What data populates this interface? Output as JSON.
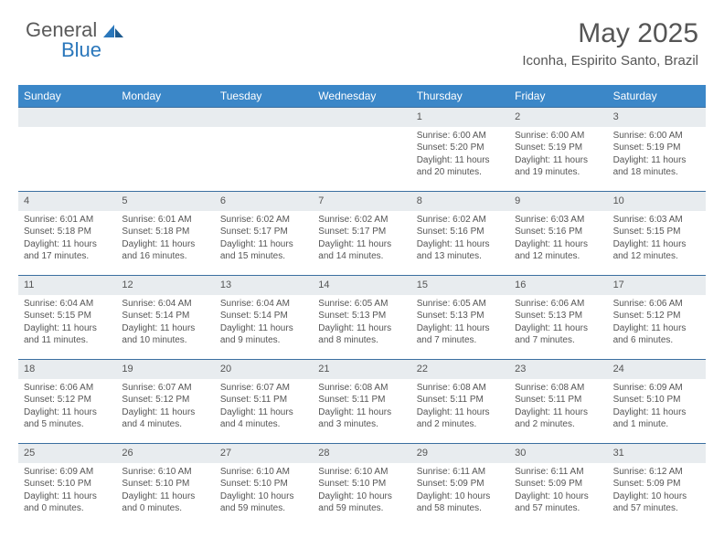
{
  "logo": {
    "text1": "General",
    "text2": "Blue"
  },
  "title": "May 2025",
  "subtitle": "Iconha, Espirito Santo, Brazil",
  "colors": {
    "header_bg": "#3b87c8",
    "header_text": "#ffffff",
    "daybar_bg": "#e8ecef",
    "daybar_border": "#3b6fa0",
    "body_text": "#555555",
    "page_bg": "#ffffff",
    "logo_blue": "#2a77bb",
    "logo_gray": "#5a5a5a"
  },
  "fonts": {
    "title_size": 30,
    "subtitle_size": 15,
    "dow_size": 12,
    "daynum_size": 11,
    "body_size": 10
  },
  "days_of_week": [
    "Sunday",
    "Monday",
    "Tuesday",
    "Wednesday",
    "Thursday",
    "Friday",
    "Saturday"
  ],
  "leading_blanks": 4,
  "days": [
    {
      "n": "1",
      "sunrise": "6:00 AM",
      "sunset": "5:20 PM",
      "daylight": "11 hours and 20 minutes."
    },
    {
      "n": "2",
      "sunrise": "6:00 AM",
      "sunset": "5:19 PM",
      "daylight": "11 hours and 19 minutes."
    },
    {
      "n": "3",
      "sunrise": "6:00 AM",
      "sunset": "5:19 PM",
      "daylight": "11 hours and 18 minutes."
    },
    {
      "n": "4",
      "sunrise": "6:01 AM",
      "sunset": "5:18 PM",
      "daylight": "11 hours and 17 minutes."
    },
    {
      "n": "5",
      "sunrise": "6:01 AM",
      "sunset": "5:18 PM",
      "daylight": "11 hours and 16 minutes."
    },
    {
      "n": "6",
      "sunrise": "6:02 AM",
      "sunset": "5:17 PM",
      "daylight": "11 hours and 15 minutes."
    },
    {
      "n": "7",
      "sunrise": "6:02 AM",
      "sunset": "5:17 PM",
      "daylight": "11 hours and 14 minutes."
    },
    {
      "n": "8",
      "sunrise": "6:02 AM",
      "sunset": "5:16 PM",
      "daylight": "11 hours and 13 minutes."
    },
    {
      "n": "9",
      "sunrise": "6:03 AM",
      "sunset": "5:16 PM",
      "daylight": "11 hours and 12 minutes."
    },
    {
      "n": "10",
      "sunrise": "6:03 AM",
      "sunset": "5:15 PM",
      "daylight": "11 hours and 12 minutes."
    },
    {
      "n": "11",
      "sunrise": "6:04 AM",
      "sunset": "5:15 PM",
      "daylight": "11 hours and 11 minutes."
    },
    {
      "n": "12",
      "sunrise": "6:04 AM",
      "sunset": "5:14 PM",
      "daylight": "11 hours and 10 minutes."
    },
    {
      "n": "13",
      "sunrise": "6:04 AM",
      "sunset": "5:14 PM",
      "daylight": "11 hours and 9 minutes."
    },
    {
      "n": "14",
      "sunrise": "6:05 AM",
      "sunset": "5:13 PM",
      "daylight": "11 hours and 8 minutes."
    },
    {
      "n": "15",
      "sunrise": "6:05 AM",
      "sunset": "5:13 PM",
      "daylight": "11 hours and 7 minutes."
    },
    {
      "n": "16",
      "sunrise": "6:06 AM",
      "sunset": "5:13 PM",
      "daylight": "11 hours and 7 minutes."
    },
    {
      "n": "17",
      "sunrise": "6:06 AM",
      "sunset": "5:12 PM",
      "daylight": "11 hours and 6 minutes."
    },
    {
      "n": "18",
      "sunrise": "6:06 AM",
      "sunset": "5:12 PM",
      "daylight": "11 hours and 5 minutes."
    },
    {
      "n": "19",
      "sunrise": "6:07 AM",
      "sunset": "5:12 PM",
      "daylight": "11 hours and 4 minutes."
    },
    {
      "n": "20",
      "sunrise": "6:07 AM",
      "sunset": "5:11 PM",
      "daylight": "11 hours and 4 minutes."
    },
    {
      "n": "21",
      "sunrise": "6:08 AM",
      "sunset": "5:11 PM",
      "daylight": "11 hours and 3 minutes."
    },
    {
      "n": "22",
      "sunrise": "6:08 AM",
      "sunset": "5:11 PM",
      "daylight": "11 hours and 2 minutes."
    },
    {
      "n": "23",
      "sunrise": "6:08 AM",
      "sunset": "5:11 PM",
      "daylight": "11 hours and 2 minutes."
    },
    {
      "n": "24",
      "sunrise": "6:09 AM",
      "sunset": "5:10 PM",
      "daylight": "11 hours and 1 minute."
    },
    {
      "n": "25",
      "sunrise": "6:09 AM",
      "sunset": "5:10 PM",
      "daylight": "11 hours and 0 minutes."
    },
    {
      "n": "26",
      "sunrise": "6:10 AM",
      "sunset": "5:10 PM",
      "daylight": "11 hours and 0 minutes."
    },
    {
      "n": "27",
      "sunrise": "6:10 AM",
      "sunset": "5:10 PM",
      "daylight": "10 hours and 59 minutes."
    },
    {
      "n": "28",
      "sunrise": "6:10 AM",
      "sunset": "5:10 PM",
      "daylight": "10 hours and 59 minutes."
    },
    {
      "n": "29",
      "sunrise": "6:11 AM",
      "sunset": "5:09 PM",
      "daylight": "10 hours and 58 minutes."
    },
    {
      "n": "30",
      "sunrise": "6:11 AM",
      "sunset": "5:09 PM",
      "daylight": "10 hours and 57 minutes."
    },
    {
      "n": "31",
      "sunrise": "6:12 AM",
      "sunset": "5:09 PM",
      "daylight": "10 hours and 57 minutes."
    }
  ],
  "labels": {
    "sunrise_prefix": "Sunrise: ",
    "sunset_prefix": "Sunset: ",
    "daylight_prefix": "Daylight: "
  }
}
